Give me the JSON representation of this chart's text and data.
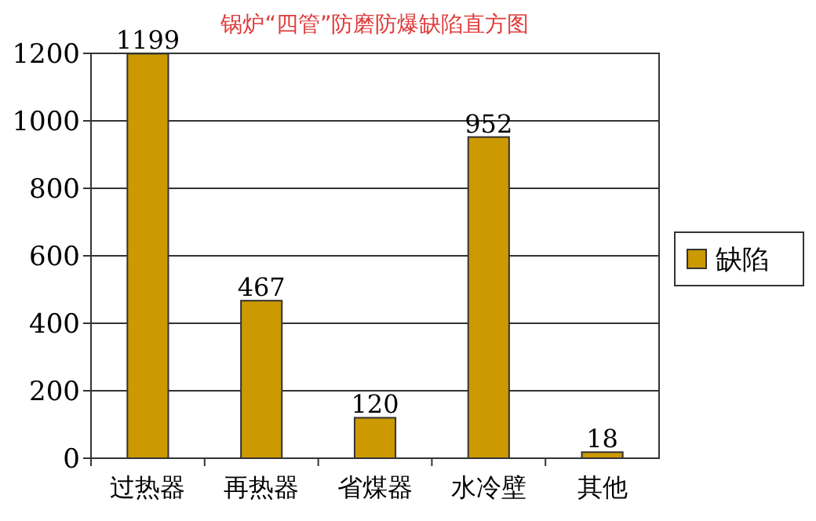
{
  "chart_data": {
    "type": "bar",
    "title": "锅炉“四管”防磨防爆缺陷直方图",
    "categories": [
      "过热器",
      "再热器",
      "省煤器",
      "水冷壁",
      "其他"
    ],
    "series": [
      {
        "name": "缺陷",
        "color": "#cc9900",
        "values": [
          1199,
          467,
          120,
          952,
          18
        ]
      }
    ],
    "ylim": [
      0,
      1200
    ],
    "yticks": [
      0,
      200,
      400,
      600,
      800,
      1000,
      1200
    ],
    "grid": "y",
    "legend": "right",
    "data_labels": true
  }
}
